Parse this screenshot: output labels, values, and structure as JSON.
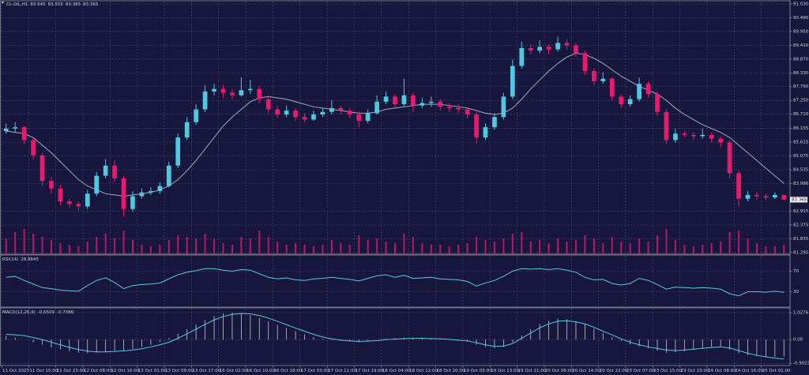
{
  "chart_data": [
    {
      "type": "candlestick",
      "title": "CL-OIL,H1",
      "up_color": "#4fc8e0",
      "down_color": "#e8196e",
      "ma_color": "#a8a8bc",
      "volume_color": "#b8176a",
      "ylim": [
        81.23,
        91.12
      ],
      "yticks": [
        {
          "value": 91.03,
          "label": "91.030"
        },
        {
          "value": 90.49,
          "label": "90.490"
        },
        {
          "value": 89.95,
          "label": "89.950"
        },
        {
          "value": 89.41,
          "label": "89.410"
        },
        {
          "value": 88.87,
          "label": "88.870"
        },
        {
          "value": 88.33,
          "label": "88.330"
        },
        {
          "value": 87.79,
          "label": "87.790"
        },
        {
          "value": 87.25,
          "label": "87.250"
        },
        {
          "value": 86.71,
          "label": "86.710"
        },
        86.155,
        85.615,
        85.075,
        84.535,
        83.996,
        82.915,
        82.375,
        81.835,
        81.295
      ],
      "candles": [
        [
          86.05,
          86.35,
          85.95,
          86.15
        ],
        [
          86.15,
          86.4,
          86.0,
          86.2
        ],
        [
          86.2,
          86.25,
          85.55,
          85.7
        ],
        [
          85.7,
          85.8,
          84.95,
          85.1
        ],
        [
          85.1,
          85.2,
          83.9,
          84.1
        ],
        [
          84.1,
          84.25,
          83.6,
          83.8
        ],
        [
          83.8,
          83.95,
          83.15,
          83.3
        ],
        [
          83.3,
          83.4,
          83.05,
          83.2
        ],
        [
          83.2,
          83.3,
          82.95,
          83.1
        ],
        [
          83.1,
          83.75,
          83.0,
          83.6
        ],
        [
          83.6,
          84.45,
          83.5,
          84.3
        ],
        [
          84.3,
          84.95,
          84.2,
          84.7
        ],
        [
          84.7,
          84.9,
          84.05,
          84.2
        ],
        [
          84.2,
          84.3,
          82.7,
          83.0
        ],
        [
          83.0,
          83.7,
          82.9,
          83.5
        ],
        [
          83.5,
          83.8,
          83.4,
          83.65
        ],
        [
          83.65,
          83.85,
          83.55,
          83.7
        ],
        [
          83.7,
          84.05,
          83.6,
          83.9
        ],
        [
          83.9,
          84.85,
          83.85,
          84.7
        ],
        [
          84.7,
          85.95,
          84.6,
          85.8
        ],
        [
          85.8,
          86.6,
          85.7,
          86.4
        ],
        [
          86.4,
          87.1,
          86.3,
          86.9
        ],
        [
          86.9,
          87.85,
          86.8,
          87.6
        ],
        [
          87.6,
          87.9,
          87.45,
          87.7
        ],
        [
          87.7,
          87.85,
          87.35,
          87.55
        ],
        [
          87.55,
          87.7,
          87.3,
          87.45
        ],
        [
          87.45,
          88.15,
          87.4,
          87.65
        ],
        [
          87.65,
          88.05,
          87.5,
          87.7
        ],
        [
          87.7,
          87.8,
          87.15,
          87.3
        ],
        [
          87.3,
          87.45,
          86.75,
          86.9
        ],
        [
          86.9,
          87.05,
          86.55,
          86.7
        ],
        [
          86.7,
          87.05,
          86.6,
          86.85
        ],
        [
          86.85,
          86.95,
          86.45,
          86.6
        ],
        [
          86.6,
          86.75,
          86.4,
          86.5
        ],
        [
          86.5,
          86.85,
          86.45,
          86.7
        ],
        [
          86.7,
          86.95,
          86.6,
          86.8
        ],
        [
          86.8,
          87.25,
          86.7,
          86.95
        ],
        [
          86.95,
          87.05,
          86.7,
          86.85
        ],
        [
          86.85,
          86.95,
          86.55,
          86.7
        ],
        [
          86.7,
          86.8,
          86.2,
          86.45
        ],
        [
          86.45,
          86.9,
          86.35,
          86.75
        ],
        [
          86.75,
          87.45,
          86.7,
          87.2
        ],
        [
          87.2,
          87.6,
          87.1,
          87.4
        ],
        [
          87.4,
          87.5,
          86.95,
          87.1
        ],
        [
          87.1,
          88.1,
          87.0,
          87.45
        ],
        [
          87.45,
          87.55,
          86.8,
          87.05
        ],
        [
          87.05,
          87.35,
          86.95,
          87.15
        ],
        [
          87.15,
          87.4,
          87.0,
          87.2
        ],
        [
          87.2,
          87.3,
          86.85,
          87.0
        ],
        [
          87.0,
          87.15,
          86.8,
          86.95
        ],
        [
          86.95,
          87.1,
          86.75,
          86.9
        ],
        [
          86.9,
          86.95,
          86.55,
          86.7
        ],
        [
          86.7,
          86.8,
          85.55,
          85.8
        ],
        [
          85.8,
          86.35,
          85.7,
          86.2
        ],
        [
          86.2,
          86.75,
          86.1,
          86.6
        ],
        [
          86.6,
          87.55,
          86.5,
          87.4
        ],
        [
          87.4,
          88.85,
          87.3,
          88.6
        ],
        [
          88.6,
          89.55,
          88.5,
          89.3
        ],
        [
          89.3,
          89.45,
          89.05,
          89.2
        ],
        [
          89.2,
          89.6,
          89.1,
          89.35
        ],
        [
          89.35,
          89.45,
          89.05,
          89.25
        ],
        [
          89.25,
          89.75,
          89.15,
          89.5
        ],
        [
          89.5,
          89.65,
          89.25,
          89.4
        ],
        [
          89.4,
          89.5,
          88.95,
          89.1
        ],
        [
          89.1,
          89.2,
          88.25,
          88.4
        ],
        [
          88.4,
          88.5,
          87.85,
          88.0
        ],
        [
          88.0,
          88.35,
          87.9,
          88.1
        ],
        [
          88.1,
          88.15,
          87.25,
          87.4
        ],
        [
          87.4,
          87.5,
          86.95,
          87.1
        ],
        [
          87.1,
          87.45,
          87.0,
          87.3
        ],
        [
          87.3,
          88.15,
          87.2,
          87.9
        ],
        [
          87.9,
          88.0,
          87.35,
          87.5
        ],
        [
          87.5,
          87.6,
          86.65,
          86.8
        ],
        [
          86.8,
          86.9,
          85.55,
          85.7
        ],
        [
          85.7,
          86.15,
          85.6,
          85.95
        ],
        [
          85.95,
          86.05,
          85.8,
          85.9
        ],
        [
          85.9,
          86.0,
          85.7,
          85.85
        ],
        [
          85.85,
          86.15,
          85.75,
          85.9
        ],
        [
          85.9,
          86.0,
          85.6,
          85.75
        ],
        [
          85.75,
          85.85,
          85.4,
          85.6
        ],
        [
          85.6,
          85.7,
          84.2,
          84.4
        ],
        [
          84.4,
          84.5,
          83.1,
          83.4
        ],
        [
          83.4,
          83.7,
          83.3,
          83.55
        ],
        [
          83.55,
          83.65,
          83.35,
          83.5
        ],
        [
          83.5,
          83.6,
          83.35,
          83.45
        ],
        [
          83.45,
          83.65,
          83.4,
          83.55
        ],
        [
          83.545,
          83.555,
          83.365,
          83.365
        ]
      ],
      "ma": [
        86.05,
        86.0,
        85.95,
        85.8,
        85.5,
        85.2,
        84.85,
        84.5,
        84.15,
        83.9,
        83.75,
        83.6,
        83.55,
        83.5,
        83.55,
        83.6,
        83.65,
        83.75,
        83.9,
        84.15,
        84.5,
        84.9,
        85.35,
        85.8,
        86.25,
        86.6,
        86.9,
        87.2,
        87.35,
        87.4,
        87.35,
        87.3,
        87.2,
        87.1,
        87.0,
        86.95,
        86.9,
        86.85,
        86.8,
        86.75,
        86.75,
        86.8,
        86.9,
        86.95,
        87.0,
        87.05,
        87.1,
        87.1,
        87.1,
        87.05,
        87.0,
        86.95,
        86.85,
        86.75,
        86.7,
        86.75,
        86.95,
        87.3,
        87.7,
        88.05,
        88.4,
        88.7,
        88.95,
        89.1,
        89.05,
        88.9,
        88.7,
        88.45,
        88.2,
        88.0,
        87.8,
        87.65,
        87.5,
        87.25,
        86.95,
        86.7,
        86.5,
        86.3,
        86.15,
        86.0,
        85.8,
        85.5,
        85.2,
        84.9,
        84.6,
        84.3,
        84.0
      ],
      "volume": [
        20,
        28,
        32,
        26,
        22,
        18,
        14,
        12,
        10,
        16,
        22,
        26,
        20,
        30,
        18,
        12,
        10,
        12,
        18,
        24,
        22,
        20,
        26,
        20,
        14,
        12,
        22,
        20,
        30,
        22,
        16,
        12,
        14,
        12,
        10,
        12,
        18,
        14,
        12,
        24,
        18,
        20,
        16,
        14,
        26,
        22,
        14,
        12,
        12,
        10,
        12,
        14,
        22,
        18,
        16,
        20,
        26,
        28,
        16,
        18,
        14,
        20,
        16,
        18,
        24,
        20,
        14,
        22,
        16,
        14,
        20,
        16,
        24,
        32,
        18,
        12,
        10,
        12,
        14,
        16,
        28,
        30,
        20,
        14,
        10,
        10,
        12
      ]
    },
    {
      "type": "line",
      "title": "RSI(14)",
      "color": "#5ac8e0",
      "ylim": [
        0,
        100
      ],
      "yticks": [
        70,
        30
      ],
      "values": [
        58,
        60,
        52,
        45,
        38,
        36,
        33,
        32,
        31,
        42,
        52,
        57,
        48,
        36,
        42,
        44,
        45,
        47,
        55,
        63,
        68,
        71,
        75,
        75,
        72,
        70,
        73,
        72,
        65,
        58,
        55,
        57,
        53,
        52,
        55,
        56,
        58,
        56,
        54,
        51,
        56,
        61,
        63,
        58,
        62,
        56,
        57,
        58,
        55,
        54,
        53,
        50,
        41,
        47,
        52,
        60,
        70,
        75,
        74,
        75,
        73,
        75,
        72,
        68,
        58,
        53,
        54,
        46,
        43,
        46,
        56,
        52,
        44,
        35,
        39,
        38,
        37,
        38,
        37,
        35,
        26,
        22,
        30,
        30,
        29,
        31,
        28.8845
      ]
    },
    {
      "type": "macd",
      "title": "MACD(12,26,9)",
      "histogram_color": "#c8c8d4",
      "signal_color": "#5ac8e0",
      "ylim": [
        -0.99,
        1.18
      ],
      "yticks": [
        1.0276,
        {
          "value": 0,
          "label": "0.00"
        },
        -0.9023
      ],
      "histogram": [
        0.15,
        0.08,
        0.0,
        -0.1,
        -0.2,
        -0.3,
        -0.38,
        -0.44,
        -0.5,
        -0.52,
        -0.5,
        -0.46,
        -0.42,
        -0.42,
        -0.36,
        -0.28,
        -0.2,
        -0.1,
        0.05,
        0.22,
        0.4,
        0.58,
        0.75,
        0.9,
        1.0,
        1.02,
        1.0,
        0.93,
        0.82,
        0.7,
        0.57,
        0.44,
        0.32,
        0.2,
        0.1,
        0.03,
        -0.02,
        -0.05,
        -0.08,
        -0.1,
        -0.06,
        0.0,
        0.04,
        0.05,
        0.07,
        0.06,
        0.05,
        0.04,
        0.02,
        0.0,
        -0.04,
        -0.08,
        -0.2,
        -0.28,
        -0.32,
        -0.28,
        -0.1,
        0.15,
        0.4,
        0.6,
        0.72,
        0.8,
        0.78,
        0.7,
        0.58,
        0.42,
        0.26,
        0.1,
        -0.05,
        -0.18,
        -0.26,
        -0.34,
        -0.42,
        -0.5,
        -0.48,
        -0.44,
        -0.38,
        -0.32,
        -0.28,
        -0.26,
        -0.38,
        -0.52,
        -0.6,
        -0.64,
        -0.66,
        -0.66,
        -0.6509
      ],
      "signal": [
        0.2,
        0.18,
        0.15,
        0.08,
        0.0,
        -0.1,
        -0.2,
        -0.3,
        -0.38,
        -0.44,
        -0.47,
        -0.47,
        -0.45,
        -0.43,
        -0.4,
        -0.35,
        -0.28,
        -0.2,
        -0.1,
        0.05,
        0.22,
        0.4,
        0.58,
        0.75,
        0.88,
        0.96,
        1.0,
        0.98,
        0.92,
        0.82,
        0.7,
        0.57,
        0.44,
        0.32,
        0.2,
        0.1,
        0.03,
        -0.02,
        -0.05,
        -0.07,
        -0.06,
        -0.04,
        0.0,
        0.02,
        0.04,
        0.05,
        0.05,
        0.04,
        0.03,
        0.01,
        -0.02,
        -0.05,
        -0.12,
        -0.2,
        -0.26,
        -0.25,
        -0.15,
        0.05,
        0.25,
        0.45,
        0.6,
        0.7,
        0.72,
        0.68,
        0.6,
        0.47,
        0.32,
        0.18,
        0.03,
        -0.1,
        -0.2,
        -0.28,
        -0.34,
        -0.4,
        -0.42,
        -0.4,
        -0.37,
        -0.33,
        -0.3,
        -0.28,
        -0.32,
        -0.42,
        -0.52,
        -0.6,
        -0.66,
        -0.71,
        -0.7386
      ],
      "xticks": [
        {
          "value": 0,
          "label": "11 Oct 2023"
        },
        {
          "value": 3,
          "label": "11 Oct 15:00"
        },
        {
          "value": 6,
          "label": "11 Oct 23:00"
        },
        {
          "value": 9,
          "label": "12 Oct 08:00"
        },
        {
          "value": 12,
          "label": "12 Oct 16:00"
        },
        {
          "value": 15,
          "label": "13 Oct 01:00"
        },
        {
          "value": 18,
          "label": "13 Oct 09:00"
        },
        {
          "value": 21,
          "label": "13 Oct 17:00"
        },
        {
          "value": 24,
          "label": "16 Oct 02:00"
        },
        {
          "value": 27,
          "label": "16 Oct 10:00"
        },
        {
          "value": 30,
          "label": "16 Oct 18:00"
        },
        {
          "value": 33,
          "label": "17 Oct 03:00"
        },
        {
          "value": 36,
          "label": "17 Oct 11:00"
        },
        {
          "value": 39,
          "label": "17 Oct 19:00"
        },
        {
          "value": 42,
          "label": "18 Oct 04:00"
        },
        {
          "value": 45,
          "label": "18 Oct 12:00"
        },
        {
          "value": 48,
          "label": "18 Oct 20:00"
        },
        {
          "value": 51,
          "label": "19 Oct 05:00"
        },
        {
          "value": 54,
          "label": "19 Oct 13:00"
        },
        {
          "value": 57,
          "label": "19 Oct 21:00"
        },
        {
          "value": 60,
          "label": "20 Oct 06:00"
        },
        {
          "value": 63,
          "label": "20 Oct 14:00"
        },
        {
          "value": 66,
          "label": "20 Oct 22:00"
        },
        {
          "value": 69,
          "label": "23 Oct 07:00"
        },
        {
          "value": 72,
          "label": "23 Oct 15:00"
        },
        {
          "value": 75,
          "label": "23 Oct 23:00"
        },
        {
          "value": 78,
          "label": "24 Oct 08:00"
        },
        {
          "value": 81,
          "label": "24 Oct 16:00"
        },
        {
          "value": 84,
          "label": "25 Oct 01:00"
        }
      ]
    }
  ]
}
